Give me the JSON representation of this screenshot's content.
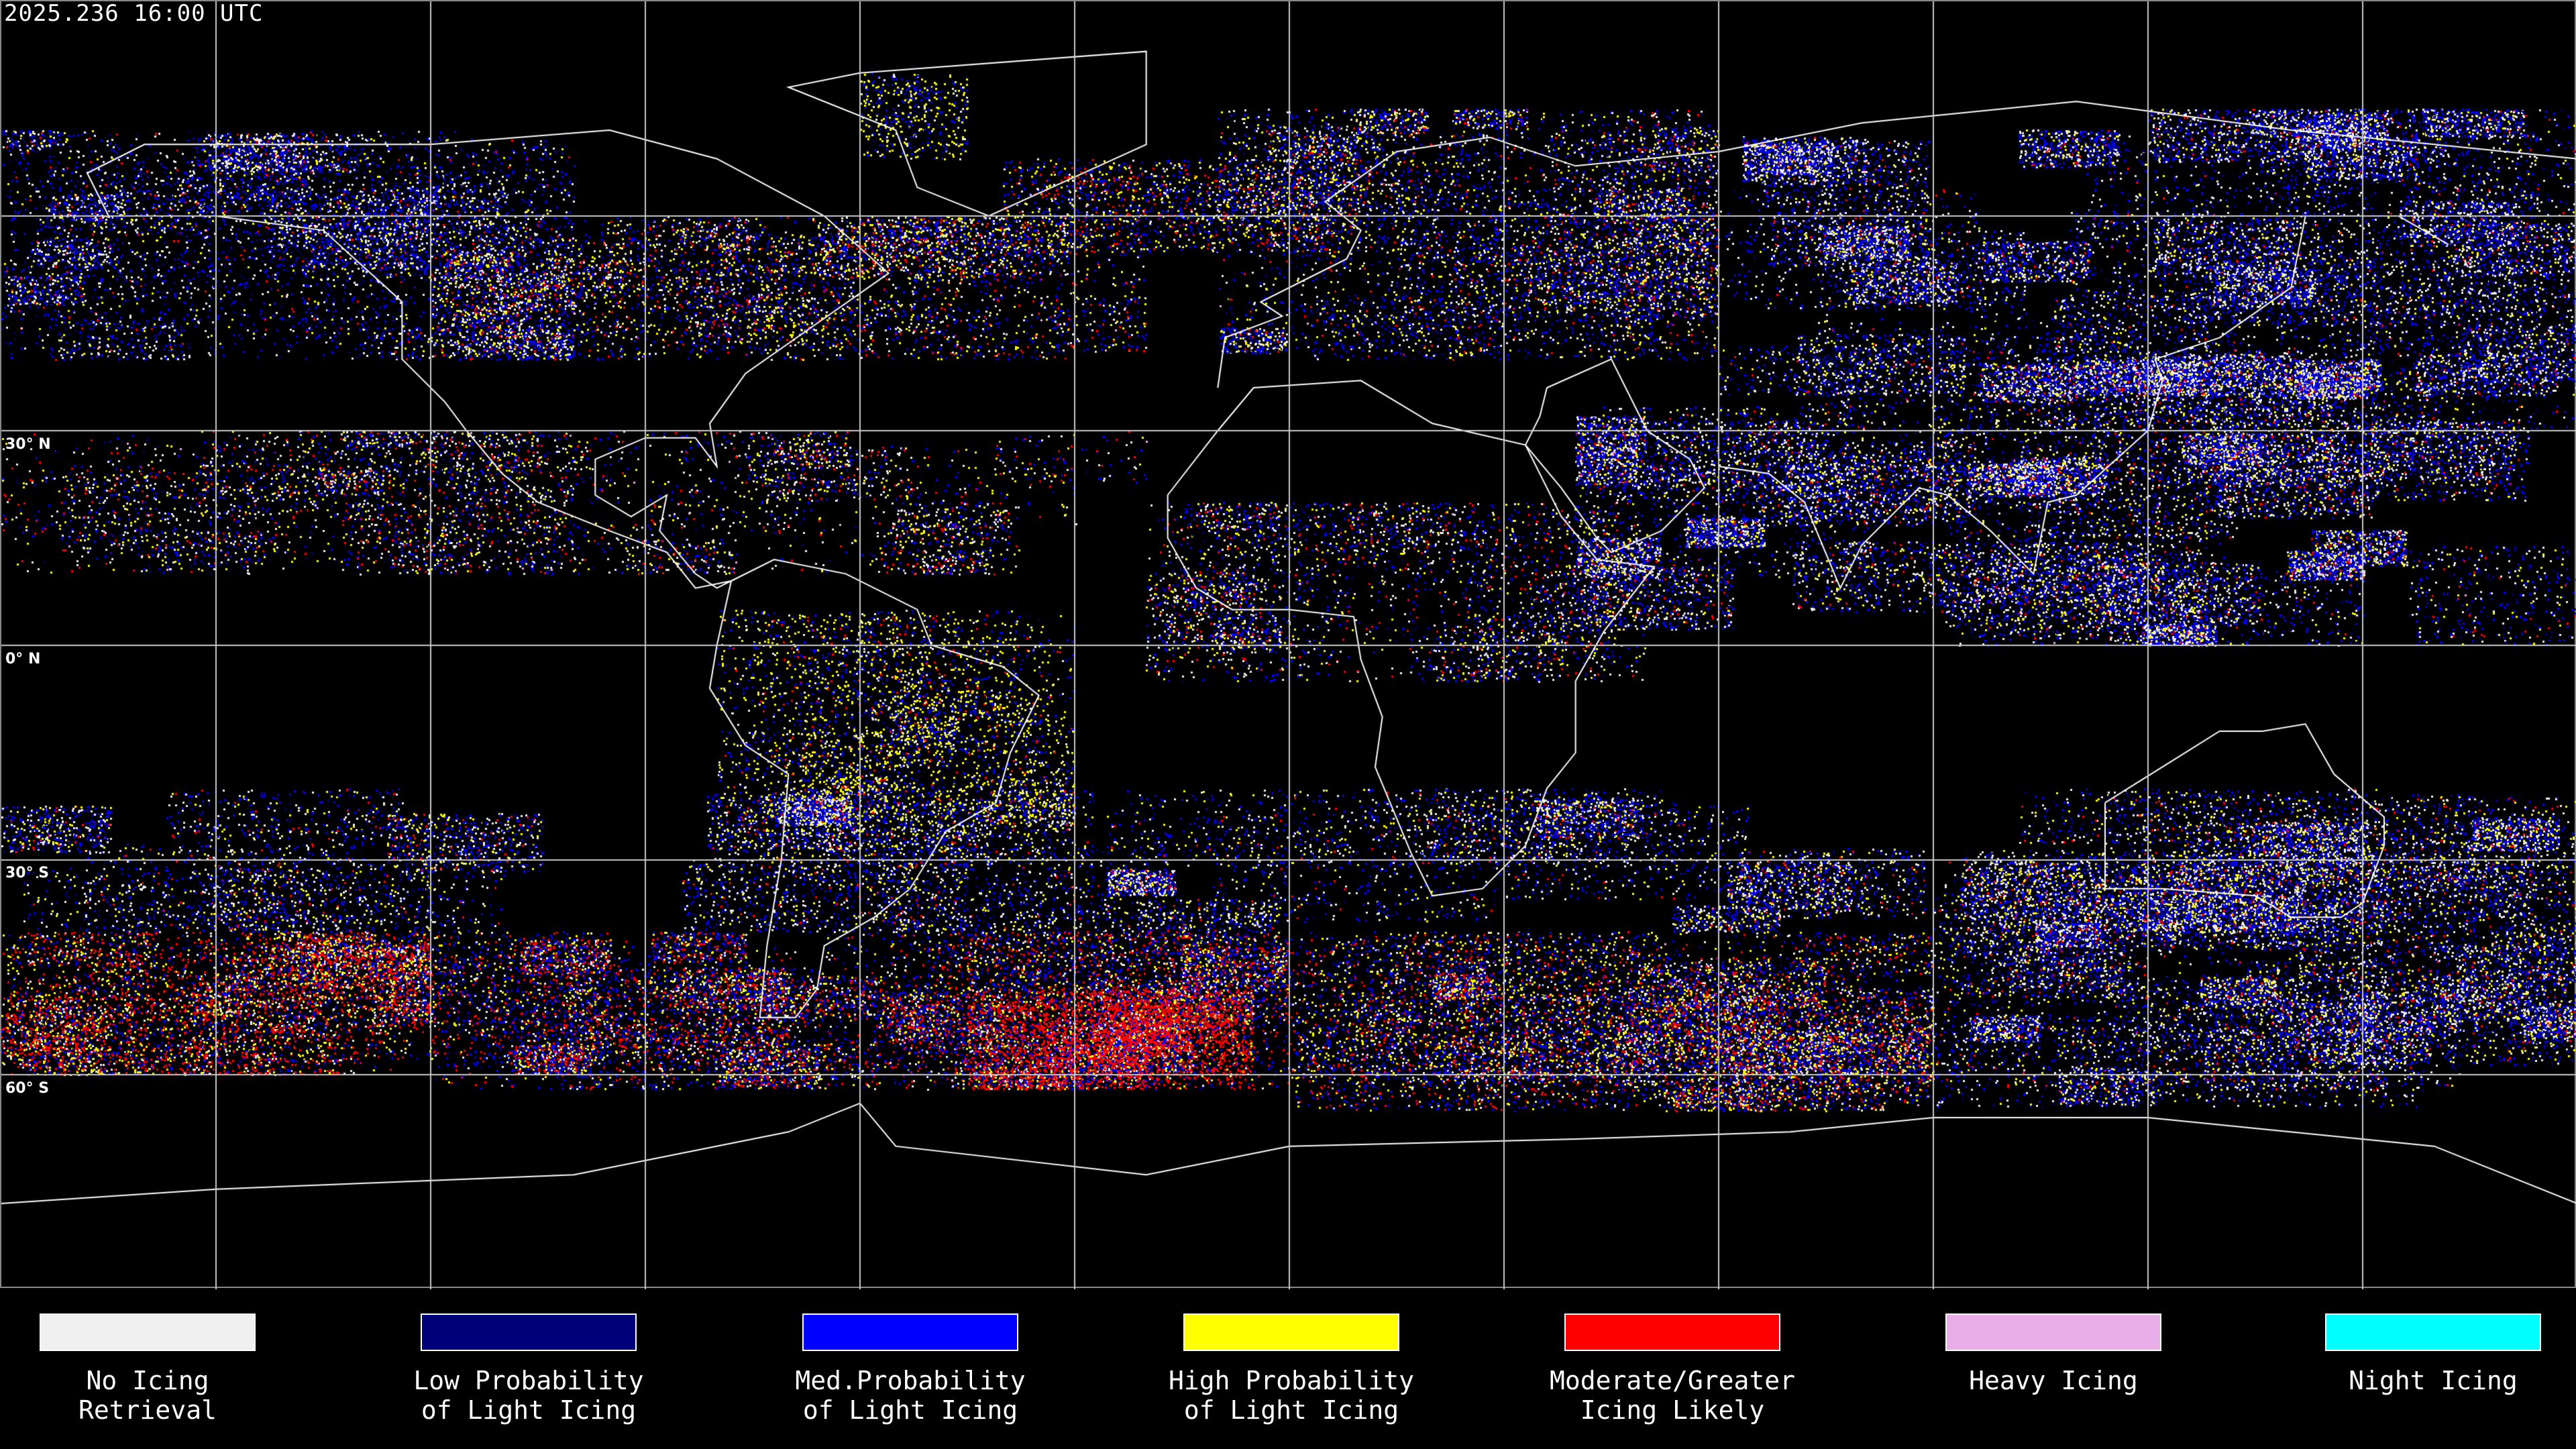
{
  "header": {
    "timestamp": "2025.236 16:00 UTC"
  },
  "map": {
    "latitude_labels": [
      "30° N",
      "0° N",
      "30° S",
      "60° S"
    ],
    "background_color": "#000000",
    "grid_color": "#c8c8c8",
    "coastline_color": "#ffffff"
  },
  "legend": {
    "items": [
      {
        "label": "No Icing\nRetrieval",
        "color": "#f0f0f0"
      },
      {
        "label": "Low Probability\nof Light Icing",
        "color": "#000078"
      },
      {
        "label": "Med.Probability\nof Light Icing",
        "color": "#0000ff"
      },
      {
        "label": "High Probability\nof Light Icing",
        "color": "#ffff00"
      },
      {
        "label": "Moderate/Greater\nIcing Likely",
        "color": "#ff0000"
      },
      {
        "label": "Heavy Icing",
        "color": "#e8aee8"
      },
      {
        "label": "Night Icing",
        "color": "#00ffff"
      }
    ]
  }
}
